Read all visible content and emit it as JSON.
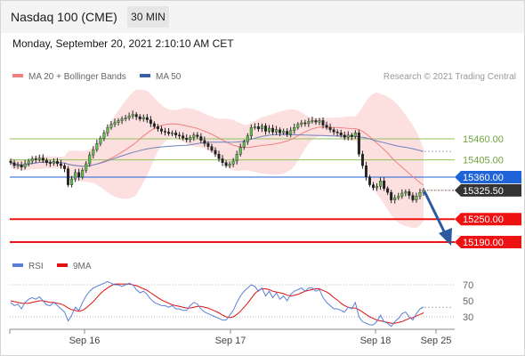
{
  "header": {
    "title": "Nasdaq 100 (CME)",
    "timeframe": "30 MIN"
  },
  "datetime": "Monday, September 20, 2021 2:10:10 AM CET",
  "legend": {
    "ma20": {
      "label": "MA 20 + Bollinger Bands",
      "color": "#f08080"
    },
    "ma50": {
      "label": "MA 50",
      "color": "#3a5fa8"
    },
    "rsi": {
      "label": "RSI",
      "color": "#5b7fd6"
    },
    "ma9": {
      "label": "9MA",
      "color": "#e01010"
    }
  },
  "copyright": "Research © 2021 Trading Central",
  "chart_data": {
    "type": "candlestick",
    "x_ticks": [
      "Sep 16",
      "Sep 17",
      "Sep 18",
      "Sep 25"
    ],
    "price_ylim": [
      15140,
      15580
    ],
    "levels": [
      {
        "value": 15460.0,
        "label": "15460.00",
        "kind": "resistance",
        "color": "#8fc25a"
      },
      {
        "value": 15405.0,
        "label": "15405.00",
        "kind": "resistance",
        "color": "#8fc25a"
      },
      {
        "value": 15360.0,
        "label": "15360.00",
        "kind": "pivot",
        "color": "#1e63d8"
      },
      {
        "value": 15325.5,
        "label": "15325.50",
        "kind": "last",
        "color": "#333333"
      },
      {
        "value": 15250.0,
        "label": "15250.00",
        "kind": "support",
        "color": "#ee1111"
      },
      {
        "value": 15190.0,
        "label": "15190.00",
        "kind": "support",
        "color": "#ee1111"
      }
    ],
    "close": [
      15398,
      15390,
      15392,
      15386,
      15395,
      15402,
      15408,
      15406,
      15410,
      15404,
      15398,
      15396,
      15401,
      15395,
      15390,
      15382,
      15340,
      15355,
      15372,
      15360,
      15378,
      15395,
      15418,
      15432,
      15448,
      15462,
      15476,
      15490,
      15498,
      15503,
      15508,
      15512,
      15515,
      15520,
      15524,
      15518,
      15512,
      15516,
      15510,
      15500,
      15492,
      15486,
      15480,
      15478,
      15474,
      15476,
      15470,
      15468,
      15462,
      15458,
      15464,
      15470,
      15466,
      15456,
      15448,
      15440,
      15430,
      15420,
      15408,
      15398,
      15390,
      15394,
      15402,
      15420,
      15438,
      15452,
      15468,
      15490,
      15492,
      15486,
      15494,
      15480,
      15488,
      15478,
      15484,
      15476,
      15480,
      15472,
      15482,
      15490,
      15498,
      15502,
      15500,
      15506,
      15508,
      15504,
      15508,
      15496,
      15490,
      15484,
      15478,
      15476,
      15470,
      15464,
      15470,
      15466,
      15476,
      15420,
      15390,
      15360,
      15340,
      15332,
      15336,
      15350,
      15330,
      15320,
      15300,
      15306,
      15310,
      15318,
      15322,
      15312,
      15300,
      15310,
      15320,
      15326
    ],
    "ma20_last": 15336,
    "ma50_last": 15415,
    "bollinger_note": "upper/lower bands shaded",
    "rsi": {
      "ticks": [
        70,
        50,
        30
      ],
      "ylim": [
        15,
        85
      ],
      "values": [
        48,
        44,
        46,
        40,
        48,
        52,
        54,
        52,
        55,
        50,
        45,
        44,
        48,
        44,
        40,
        36,
        25,
        32,
        42,
        38,
        48,
        56,
        62,
        66,
        68,
        70,
        72,
        74,
        72,
        70,
        70,
        68,
        70,
        72,
        70,
        64,
        60,
        62,
        58,
        52,
        48,
        46,
        44,
        44,
        42,
        44,
        40,
        40,
        38,
        38,
        44,
        48,
        46,
        40,
        36,
        34,
        32,
        30,
        28,
        26,
        26,
        32,
        38,
        48,
        56,
        62,
        66,
        70,
        68,
        62,
        66,
        56,
        62,
        54,
        60,
        52,
        56,
        50,
        58,
        62,
        64,
        66,
        62,
        66,
        66,
        62,
        64,
        54,
        48,
        44,
        40,
        40,
        38,
        36,
        42,
        40,
        48,
        30,
        24,
        22,
        20,
        20,
        24,
        32,
        24,
        22,
        18,
        24,
        28,
        34,
        36,
        30,
        26,
        34,
        40,
        42
      ],
      "ma9": [
        50,
        49,
        48,
        47,
        47,
        47,
        48,
        49,
        50,
        50,
        49,
        48,
        48,
        47,
        46,
        44,
        41,
        39,
        38,
        37,
        38,
        41,
        45,
        49,
        54,
        59,
        63,
        66,
        69,
        71,
        71,
        71,
        71,
        71,
        70,
        69,
        67,
        65,
        63,
        60,
        57,
        54,
        51,
        49,
        47,
        45,
        44,
        43,
        42,
        41,
        41,
        42,
        43,
        43,
        42,
        41,
        39,
        37,
        35,
        32,
        30,
        29,
        30,
        33,
        37,
        42,
        47,
        53,
        59,
        63,
        65,
        65,
        64,
        62,
        61,
        60,
        59,
        57,
        56,
        57,
        58,
        60,
        62,
        63,
        64,
        65,
        65,
        63,
        61,
        58,
        54,
        51,
        47,
        44,
        42,
        41,
        41,
        39,
        36,
        33,
        30,
        28,
        26,
        25,
        24,
        23,
        22,
        22,
        23,
        24,
        26,
        28,
        29,
        31,
        33,
        35
      ]
    }
  }
}
